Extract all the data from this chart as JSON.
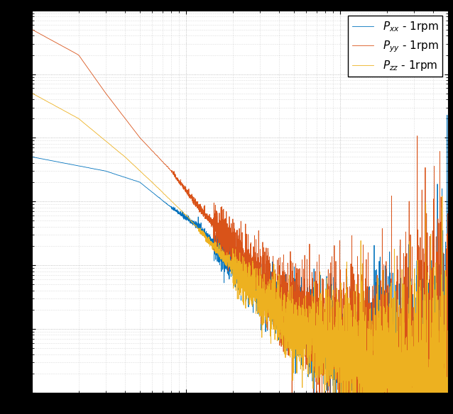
{
  "title": "",
  "xlabel": "",
  "ylabel": "",
  "xlim": [
    1,
    500
  ],
  "ylim": [
    1e-09,
    0.001
  ],
  "legend_labels": [
    "$P_{xx}$ - 1rpm",
    "$P_{yy}$ - 1rpm",
    "$P_{zz}$ - 1rpm"
  ],
  "colors": [
    "#0072BD",
    "#D95319",
    "#EDB120"
  ],
  "linewidths": [
    0.6,
    0.6,
    0.6
  ],
  "background_color": "#FFFFFF",
  "grid_color": "#b0b0b0",
  "legend_fontsize": 11,
  "tick_labelsize": 10,
  "figsize": [
    6.38,
    5.84
  ],
  "dpi": 100
}
